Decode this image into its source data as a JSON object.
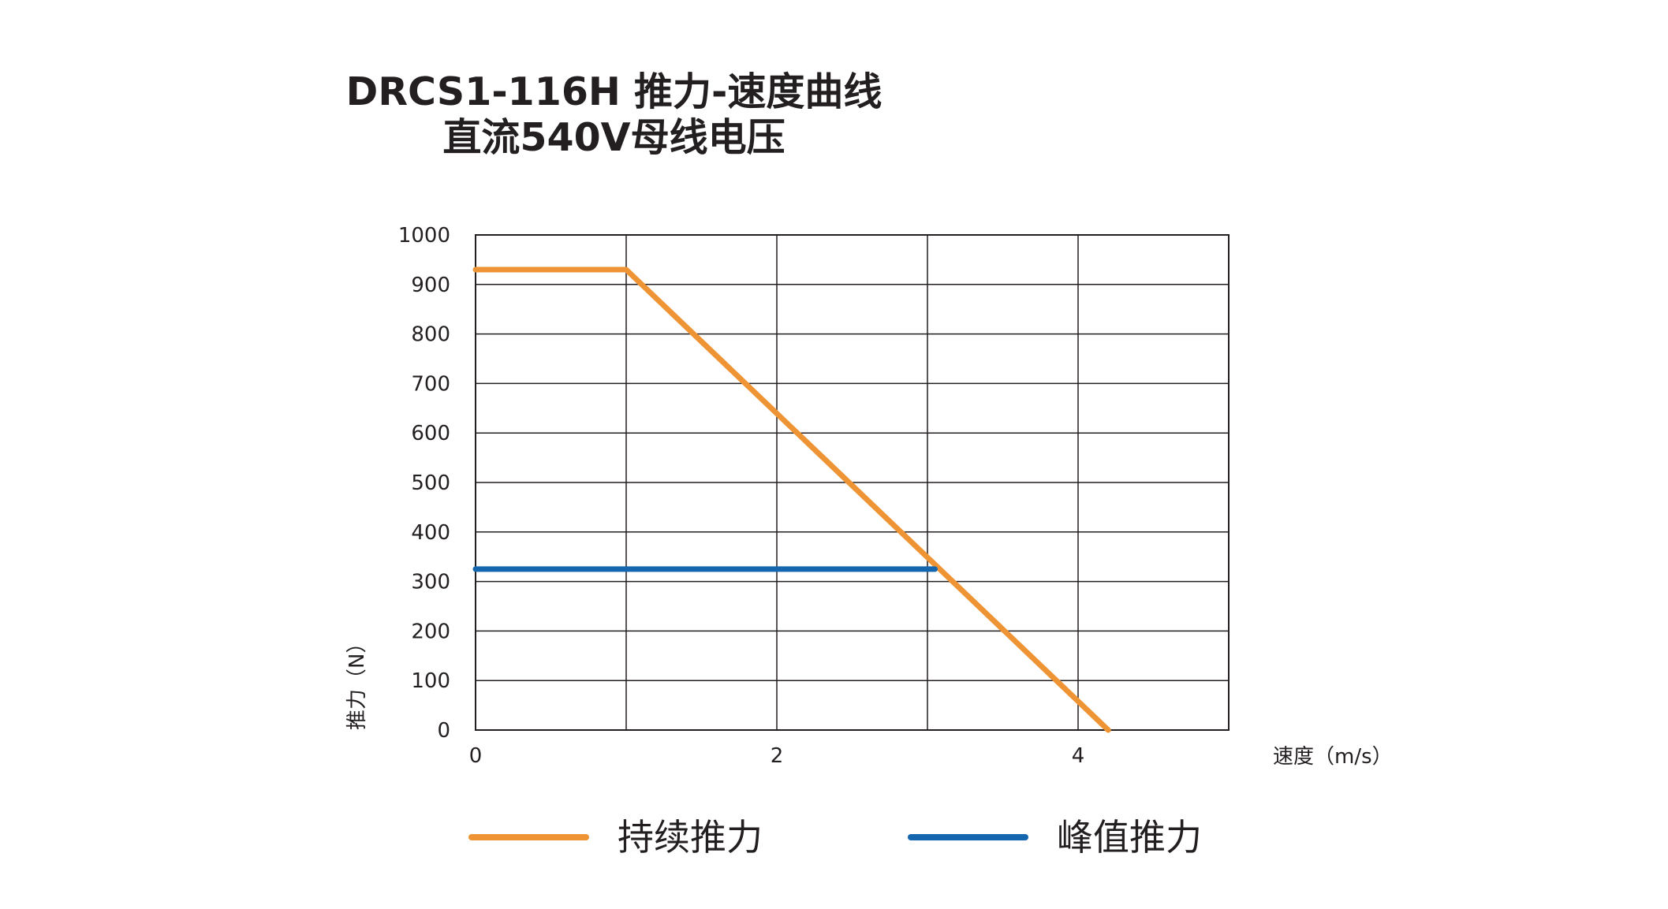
{
  "chart_data": {
    "type": "line",
    "title": "DRCS1-116H 推力-速度曲线",
    "subtitle": "直流540V母线电压",
    "xlabel": "速度（m/s）",
    "ylabel": "推力（N）",
    "xlim": [
      0,
      5
    ],
    "ylim": [
      0,
      1000
    ],
    "x_ticks": [
      "0",
      "2",
      "4"
    ],
    "x_tick_values": [
      0,
      2,
      4
    ],
    "y_ticks": [
      "0",
      "100",
      "200",
      "300",
      "400",
      "500",
      "600",
      "700",
      "800",
      "900",
      "1000"
    ],
    "y_tick_values": [
      0,
      100,
      200,
      300,
      400,
      500,
      600,
      700,
      800,
      900,
      1000
    ],
    "grid": true,
    "legend": "bottom",
    "series": [
      {
        "name": "持续推力",
        "color": "#ee9434",
        "points": [
          [
            0,
            930
          ],
          [
            1,
            930
          ],
          [
            4.2,
            0
          ]
        ]
      },
      {
        "name": "峰值推力",
        "color": "#1466ae",
        "points": [
          [
            0,
            325
          ],
          [
            3.05,
            325
          ]
        ]
      }
    ]
  }
}
